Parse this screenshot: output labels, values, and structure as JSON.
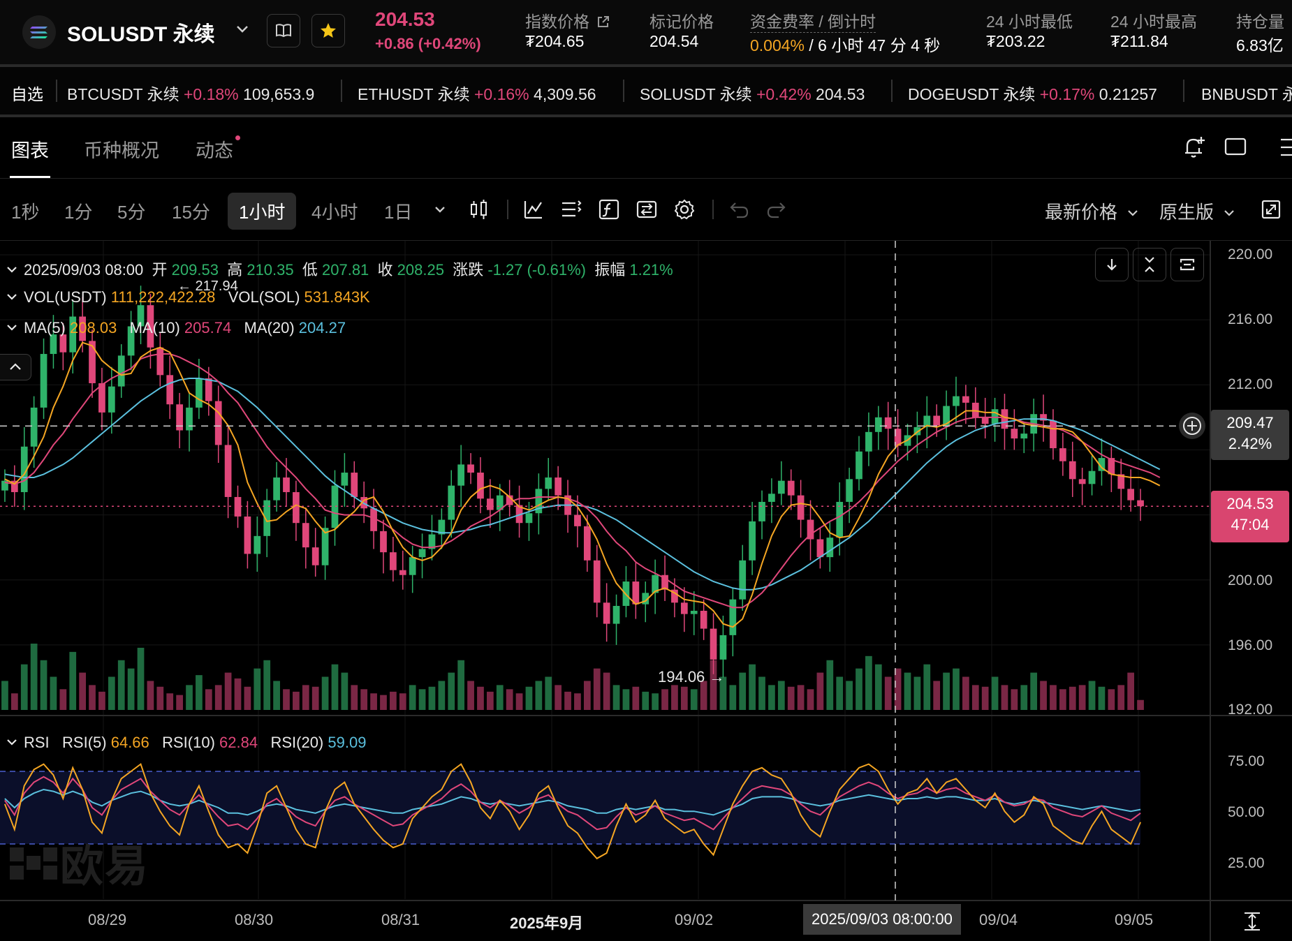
{
  "header": {
    "symbol": "SOLUSDT 永续",
    "last_price": "204.53",
    "change": "+0.86 (+0.42%)",
    "stats": [
      {
        "label": "指数价格",
        "value": "₮204.65"
      },
      {
        "label": "标记价格",
        "value": "204.54"
      },
      {
        "label": "资金费率 / 倒计时",
        "rate": "0.004%",
        "countdown": " / 6 小时 47 分 4 秒"
      },
      {
        "label": "24 小时最低",
        "value": "₮203.22"
      },
      {
        "label": "24 小时最高",
        "value": "₮211.84"
      },
      {
        "label": "持仓量",
        "value": "6.83亿"
      }
    ]
  },
  "ticker": {
    "label": "自选",
    "items": [
      {
        "name": "BTCUSDT 永续",
        "change": "+0.18%",
        "price": "109,653.9"
      },
      {
        "name": "ETHUSDT 永续",
        "change": "+0.16%",
        "price": "4,309.56"
      },
      {
        "name": "SOLUSDT 永续",
        "change": "+0.42%",
        "price": "204.53"
      },
      {
        "name": "DOGEUSDT 永续",
        "change": "+0.17%",
        "price": "0.21257"
      },
      {
        "name": "BNBUSDT 永"
      }
    ]
  },
  "tabs": [
    "图表",
    "币种概况",
    "动态"
  ],
  "toolbar": {
    "timeframes": [
      "1秒",
      "1分",
      "5分",
      "15分",
      "1小时",
      "4小时",
      "1日"
    ],
    "active_timeframe": "1小时",
    "price_type": "最新价格",
    "chart_mode": "原生版"
  },
  "legend": {
    "datetime": "2025/09/03 08:00",
    "open_label": "开",
    "open": "209.53",
    "high_label": "高",
    "high": "210.35",
    "low_label": "低",
    "low": "207.81",
    "close_label": "收",
    "close": "208.25",
    "change_label": "涨跌",
    "change": "-1.27 (-0.61%)",
    "amp_label": "振幅",
    "amp": "1.21%",
    "vol_usdt_label": "VOL(USDT)",
    "vol_usdt": "111,222,422.28",
    "vol_sol_label": "VOL(SOL)",
    "vol_sol": "531.843K",
    "ma5_label": "MA(5)",
    "ma5": "208.03",
    "ma10_label": "MA(10)",
    "ma10": "205.74",
    "ma20_label": "MA(20)",
    "ma20": "204.27",
    "rsi_label": "RSI",
    "rsi5_label": "RSI(5)",
    "rsi5": "64.66",
    "rsi10_label": "RSI(10)",
    "rsi10": "62.84",
    "rsi20_label": "RSI(20)",
    "rsi20": "59.09"
  },
  "annotations": {
    "high_marker": "← 217.94",
    "low_marker": "194.06 →",
    "crosshair_price": "209.47",
    "crosshair_pct": "2.42%",
    "last_price": "204.53",
    "last_countdown": "47:04",
    "crosshair_time": "2025/09/03 08:00:00",
    "watermark": "欧易"
  },
  "colors": {
    "up": "#2fb36a",
    "down": "#e0477a",
    "ma5": "#f5a623",
    "ma10": "#e0477a",
    "ma20": "#5bc0de"
  },
  "chart_data": {
    "type": "candlestick",
    "price_axis": [
      "220.00",
      "216.00",
      "212.00",
      "209.47",
      "204.53",
      "200.00",
      "196.00",
      "192.00"
    ],
    "ylim": [
      192,
      220
    ],
    "rsi_axis": [
      "75.00",
      "50.00",
      "25.00"
    ],
    "rsi_ylim": [
      0,
      100
    ],
    "rsi_bands": [
      70,
      30
    ],
    "x_labels": [
      "08/29",
      "08/30",
      "08/31",
      "2025年9月",
      "09/02",
      "09/04",
      "09/05"
    ],
    "close": [
      206.1,
      205.4,
      208.2,
      210.6,
      213.9,
      215.1,
      214.0,
      216.2,
      214.7,
      212.1,
      210.3,
      211.9,
      213.8,
      215.6,
      216.9,
      214.3,
      212.6,
      210.8,
      209.2,
      210.6,
      212.4,
      211.0,
      208.3,
      205.1,
      203.9,
      201.6,
      202.7,
      204.9,
      206.3,
      205.4,
      203.5,
      202.0,
      200.9,
      203.2,
      205.8,
      206.6,
      205.1,
      204.4,
      203.0,
      201.7,
      200.6,
      200.3,
      201.4,
      201.9,
      202.8,
      203.7,
      205.8,
      207.1,
      206.6,
      205.0,
      204.3,
      205.2,
      204.6,
      203.5,
      204.1,
      205.6,
      206.3,
      205.2,
      204.0,
      203.3,
      201.2,
      198.6,
      197.3,
      198.4,
      199.9,
      198.5,
      199.2,
      200.3,
      199.4,
      198.6,
      197.9,
      198.1,
      197.0,
      195.1,
      196.6,
      198.8,
      201.2,
      203.6,
      204.8,
      205.3,
      206.1,
      205.2,
      203.7,
      202.5,
      201.4,
      202.6,
      204.8,
      206.2,
      207.9,
      209.1,
      210.0,
      209.3,
      208.25,
      208.9,
      209.4,
      210.1,
      209.5,
      210.7,
      211.3,
      210.9,
      210.0,
      209.6,
      210.5,
      209.3,
      208.7,
      209.0,
      210.2,
      209.8,
      208.1,
      207.3,
      206.2,
      205.9,
      206.7,
      207.5,
      206.5,
      205.6,
      204.9,
      204.53
    ],
    "ma5": [
      206.2,
      205.9,
      206.5,
      207.6,
      208.8,
      210.6,
      211.9,
      213.5,
      214.6,
      214.4,
      213.5,
      213.0,
      212.6,
      212.7,
      213.7,
      214.1,
      214.3,
      214.0,
      212.8,
      211.5,
      211.1,
      210.8,
      210.3,
      209.5,
      208.3,
      206.0,
      204.7,
      203.6,
      203.7,
      204.2,
      204.6,
      204.4,
      203.6,
      202.9,
      203.1,
      203.7,
      204.2,
      204.9,
      205.1,
      204.2,
      203.0,
      202.0,
      201.4,
      201.2,
      201.4,
      202.0,
      202.9,
      204.3,
      205.1,
      205.6,
      205.8,
      205.6,
      205.1,
      204.5,
      204.3,
      204.6,
      204.9,
      205.1,
      205.0,
      204.5,
      203.6,
      202.5,
      201.0,
      199.8,
      199.1,
      198.5,
      198.7,
      199.3,
      199.5,
      199.2,
      198.8,
      198.7,
      198.6,
      198.1,
      197.3,
      197.1,
      197.6,
      199.1,
      201.0,
      202.7,
      203.9,
      204.6,
      204.7,
      204.6,
      203.8,
      202.9,
      202.6,
      202.7,
      203.8,
      205.0,
      206.5,
      207.6,
      208.3,
      208.6,
      209.1,
      209.5,
      209.4,
      209.6,
      210.0,
      210.4,
      210.4,
      210.3,
      210.3,
      210.0,
      209.9,
      209.6,
      209.5,
      209.4,
      209.3,
      209.3,
      209.1,
      208.5,
      207.7,
      206.9,
      206.5,
      206.4,
      206.3,
      206.3,
      206.1,
      205.8
    ],
    "ma10": [
      206.0,
      205.9,
      206.1,
      206.6,
      207.4,
      208.3,
      209.0,
      209.9,
      210.7,
      211.5,
      212.0,
      212.4,
      212.7,
      213.0,
      213.6,
      213.8,
      213.9,
      213.9,
      213.7,
      213.4,
      213.1,
      212.7,
      212.2,
      211.5,
      210.9,
      210.0,
      209.1,
      208.2,
      207.5,
      206.9,
      206.3,
      205.6,
      205.0,
      204.3,
      204.1,
      204.0,
      204.0,
      204.0,
      203.8,
      203.5,
      203.1,
      202.6,
      202.2,
      202.0,
      202.0,
      202.1,
      202.4,
      202.8,
      203.3,
      203.6,
      203.9,
      204.3,
      204.8,
      205.0,
      205.0,
      205.1,
      205.1,
      205.1,
      205.0,
      204.8,
      204.4,
      203.8,
      203.0,
      202.3,
      201.8,
      201.1,
      200.7,
      200.4,
      200.1,
      199.7,
      199.3,
      199.1,
      198.9,
      198.7,
      198.5,
      198.3,
      198.3,
      198.7,
      199.2,
      199.9,
      200.7,
      201.5,
      202.2,
      202.8,
      203.2,
      203.6,
      203.9,
      204.3,
      204.8,
      205.4,
      206.1,
      206.7,
      207.3,
      207.8,
      208.3,
      208.7,
      209.1,
      209.4,
      209.7,
      209.9,
      210.0,
      210.0,
      210.0,
      210.0,
      209.9,
      209.7,
      209.6,
      209.5,
      209.4,
      209.2,
      208.9,
      208.5,
      208.1,
      207.7,
      207.4,
      207.2,
      207.0,
      206.8,
      206.6,
      206.3
    ],
    "ma20": [
      206.5,
      206.4,
      206.3,
      206.3,
      206.5,
      206.8,
      207.1,
      207.5,
      208.0,
      208.5,
      209.0,
      209.5,
      210.0,
      210.5,
      211.0,
      211.4,
      211.8,
      212.1,
      212.3,
      212.4,
      212.4,
      212.3,
      212.2,
      211.9,
      211.6,
      211.1,
      210.6,
      210.0,
      209.4,
      208.8,
      208.2,
      207.6,
      207.0,
      206.4,
      205.9,
      205.5,
      205.1,
      204.7,
      204.4,
      204.1,
      203.8,
      203.5,
      203.3,
      203.1,
      203.0,
      202.9,
      202.9,
      203.0,
      203.1,
      203.3,
      203.4,
      203.6,
      203.8,
      204.0,
      204.2,
      204.4,
      204.5,
      204.6,
      204.6,
      204.6,
      204.5,
      204.3,
      204.0,
      203.7,
      203.3,
      202.9,
      202.5,
      202.1,
      201.7,
      201.3,
      200.9,
      200.5,
      200.2,
      199.9,
      199.7,
      199.5,
      199.4,
      199.4,
      199.5,
      199.7,
      200.0,
      200.3,
      200.6,
      201.0,
      201.4,
      201.8,
      202.2,
      202.6,
      203.1,
      203.6,
      204.2,
      204.8,
      205.4,
      206.0,
      206.6,
      207.2,
      207.7,
      208.2,
      208.6,
      208.9,
      209.2,
      209.4,
      209.6,
      209.7,
      209.8,
      209.9,
      209.9,
      209.9,
      209.8,
      209.6,
      209.4,
      209.2,
      208.9,
      208.6,
      208.3,
      208.0,
      207.7,
      207.4,
      207.1,
      206.8
    ],
    "rsi5": [
      52,
      38,
      62,
      71,
      74,
      68,
      55,
      72,
      60,
      42,
      36,
      54,
      66,
      70,
      74,
      58,
      48,
      40,
      35,
      52,
      62,
      48,
      35,
      28,
      30,
      25,
      40,
      58,
      62,
      50,
      38,
      30,
      28,
      48,
      60,
      64,
      52,
      45,
      38,
      32,
      28,
      30,
      44,
      50,
      56,
      60,
      70,
      74,
      64,
      50,
      44,
      54,
      48,
      38,
      46,
      58,
      62,
      50,
      40,
      36,
      28,
      22,
      25,
      40,
      52,
      42,
      46,
      54,
      44,
      40,
      36,
      38,
      30,
      24,
      38,
      52,
      62,
      70,
      72,
      68,
      66,
      58,
      46,
      38,
      34,
      48,
      60,
      66,
      72,
      74,
      70,
      60,
      52,
      58,
      60,
      66,
      58,
      64,
      66,
      60,
      54,
      50,
      58,
      48,
      42,
      46,
      56,
      52,
      40,
      36,
      32,
      30,
      40,
      48,
      38,
      34,
      30,
      42
    ],
    "rsi10": [
      54,
      46,
      58,
      64,
      67,
      64,
      58,
      66,
      60,
      50,
      46,
      54,
      60,
      63,
      66,
      59,
      54,
      49,
      46,
      52,
      57,
      51,
      45,
      40,
      41,
      38,
      44,
      52,
      55,
      50,
      45,
      42,
      40,
      48,
      54,
      56,
      52,
      49,
      46,
      43,
      40,
      41,
      46,
      49,
      52,
      55,
      60,
      63,
      59,
      53,
      50,
      54,
      51,
      47,
      50,
      55,
      57,
      52,
      48,
      46,
      42,
      38,
      39,
      45,
      50,
      46,
      48,
      51,
      47,
      45,
      43,
      44,
      41,
      38,
      44,
      50,
      55,
      60,
      62,
      61,
      60,
      57,
      52,
      48,
      46,
      51,
      56,
      59,
      62,
      64,
      62,
      58,
      55,
      57,
      58,
      61,
      58,
      60,
      61,
      58,
      56,
      54,
      57,
      53,
      51,
      52,
      55,
      54,
      50,
      48,
      46,
      45,
      48,
      51,
      47,
      45,
      43,
      47
    ],
    "rsi20": [
      55,
      50,
      55,
      58,
      60,
      59,
      57,
      59,
      57,
      53,
      51,
      54,
      56,
      58,
      59,
      57,
      54,
      52,
      51,
      52,
      54,
      52,
      50,
      47,
      47,
      46,
      48,
      51,
      52,
      51,
      49,
      48,
      47,
      49,
      51,
      52,
      51,
      50,
      49,
      48,
      47,
      47,
      49,
      50,
      51,
      52,
      54,
      56,
      55,
      53,
      52,
      53,
      52,
      51,
      52,
      53,
      54,
      53,
      51,
      50,
      49,
      47,
      47,
      49,
      50,
      49,
      50,
      51,
      49,
      49,
      48,
      48,
      47,
      46,
      48,
      50,
      52,
      55,
      56,
      56,
      56,
      55,
      53,
      52,
      51,
      52,
      54,
      55,
      56,
      57,
      56,
      55,
      54,
      55,
      55,
      56,
      55,
      56,
      56,
      55,
      54,
      54,
      55,
      53,
      52,
      53,
      54,
      53,
      52,
      51,
      50,
      49,
      50,
      51,
      50,
      49,
      48,
      49
    ],
    "volume": [
      35,
      20,
      55,
      80,
      60,
      40,
      25,
      70,
      45,
      30,
      22,
      40,
      60,
      50,
      75,
      35,
      28,
      20,
      18,
      30,
      42,
      25,
      30,
      45,
      38,
      28,
      50,
      60,
      35,
      25,
      22,
      30,
      28,
      40,
      55,
      45,
      30,
      25,
      20,
      18,
      22,
      20,
      30,
      25,
      28,
      35,
      45,
      60,
      35,
      28,
      22,
      30,
      25,
      20,
      28,
      35,
      40,
      30,
      22,
      20,
      35,
      50,
      45,
      30,
      25,
      28,
      22,
      20,
      25,
      30,
      28,
      25,
      35,
      60,
      40,
      30,
      45,
      55,
      40,
      30,
      35,
      28,
      30,
      25,
      45,
      60,
      40,
      35,
      50,
      65,
      55,
      40,
      50,
      45,
      40,
      55,
      35,
      45,
      50,
      40,
      30,
      28,
      40,
      30,
      25,
      30,
      45,
      35,
      30,
      25,
      28,
      30,
      35,
      28,
      25,
      30,
      45,
      12
    ]
  }
}
